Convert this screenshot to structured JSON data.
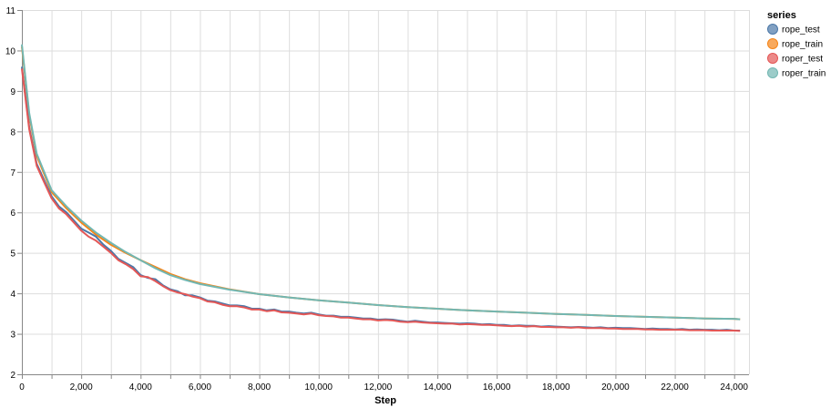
{
  "chart_data": {
    "type": "line",
    "xlabel": "Step",
    "ylabel": "",
    "xlim": [
      0,
      24500
    ],
    "ylim": [
      2,
      11
    ],
    "x_ticks": [
      0,
      2000,
      4000,
      6000,
      8000,
      10000,
      12000,
      14000,
      16000,
      18000,
      20000,
      22000,
      24000
    ],
    "x_tick_labels": [
      "0",
      "2,000",
      "4,000",
      "6,000",
      "8,000",
      "10,000",
      "12,000",
      "14,000",
      "16,000",
      "18,000",
      "20,000",
      "22,000",
      "24,000"
    ],
    "y_ticks": [
      2,
      3,
      4,
      5,
      6,
      7,
      8,
      9,
      10,
      11
    ],
    "y_tick_labels": [
      "2",
      "3",
      "4",
      "5",
      "6",
      "7",
      "8",
      "9",
      "10",
      "11"
    ],
    "grid": true,
    "legend": {
      "title": "series",
      "placement": "top-right",
      "items": [
        "rope_test",
        "rope_train",
        "roper_test",
        "roper_train"
      ]
    },
    "series": [
      {
        "name": "rope_test",
        "color": "#4c78a8",
        "x": [
          0,
          250,
          500,
          750,
          1000,
          1250,
          1500,
          1750,
          2000,
          2250,
          2500,
          2750,
          3000,
          3250,
          3500,
          3750,
          4000,
          4250,
          4500,
          4750,
          5000,
          5250,
          5500,
          5750,
          6000,
          6250,
          6500,
          6750,
          7000,
          7250,
          7500,
          7750,
          8000,
          8250,
          8500,
          8750,
          9000,
          9250,
          9500,
          9750,
          10000,
          10250,
          10500,
          10750,
          11000,
          11250,
          11500,
          11750,
          12000,
          12250,
          12500,
          12750,
          13000,
          13250,
          13500,
          13750,
          14000,
          14250,
          14500,
          14750,
          15000,
          15250,
          15500,
          15750,
          16000,
          16250,
          16500,
          16750,
          17000,
          17250,
          17500,
          17750,
          18000,
          18250,
          18500,
          18750,
          19000,
          19250,
          19500,
          19750,
          20000,
          20250,
          20500,
          20750,
          21000,
          21250,
          21500,
          21750,
          22000,
          22250,
          22500,
          22750,
          23000,
          23250,
          23500,
          23750,
          24000,
          24200
        ],
        "y": [
          9.6,
          8.1,
          7.2,
          6.8,
          6.4,
          6.15,
          6.0,
          5.8,
          5.6,
          5.5,
          5.4,
          5.2,
          5.05,
          4.85,
          4.75,
          4.65,
          4.45,
          4.38,
          4.35,
          4.2,
          4.1,
          4.05,
          3.95,
          3.95,
          3.9,
          3.82,
          3.8,
          3.75,
          3.7,
          3.7,
          3.68,
          3.62,
          3.62,
          3.58,
          3.6,
          3.55,
          3.55,
          3.52,
          3.5,
          3.52,
          3.48,
          3.45,
          3.45,
          3.42,
          3.42,
          3.4,
          3.38,
          3.38,
          3.35,
          3.36,
          3.35,
          3.32,
          3.3,
          3.32,
          3.3,
          3.28,
          3.28,
          3.27,
          3.26,
          3.25,
          3.26,
          3.25,
          3.23,
          3.24,
          3.22,
          3.22,
          3.2,
          3.21,
          3.2,
          3.2,
          3.18,
          3.19,
          3.18,
          3.17,
          3.16,
          3.17,
          3.16,
          3.15,
          3.16,
          3.14,
          3.15,
          3.14,
          3.14,
          3.13,
          3.12,
          3.13,
          3.12,
          3.12,
          3.11,
          3.12,
          3.1,
          3.11,
          3.1,
          3.1,
          3.09,
          3.1,
          3.08,
          3.08
        ]
      },
      {
        "name": "rope_train",
        "color": "#f58518",
        "x": [
          0,
          250,
          500,
          1000,
          1500,
          2000,
          2500,
          3000,
          3500,
          4000,
          4500,
          5000,
          5500,
          6000,
          7000,
          8000,
          9000,
          10000,
          11000,
          12000,
          13000,
          14000,
          15000,
          16000,
          17000,
          18000,
          19000,
          20000,
          21000,
          22000,
          23000,
          24000,
          24200
        ],
        "y": [
          10.1,
          8.4,
          7.4,
          6.5,
          6.1,
          5.75,
          5.45,
          5.2,
          5.0,
          4.82,
          4.65,
          4.48,
          4.35,
          4.25,
          4.1,
          3.98,
          3.9,
          3.83,
          3.77,
          3.71,
          3.66,
          3.62,
          3.58,
          3.55,
          3.52,
          3.49,
          3.47,
          3.44,
          3.42,
          3.4,
          3.38,
          3.37,
          3.36
        ]
      },
      {
        "name": "roper_test",
        "color": "#e45756",
        "x": [
          0,
          250,
          500,
          750,
          1000,
          1250,
          1500,
          1750,
          2000,
          2250,
          2500,
          2750,
          3000,
          3250,
          3500,
          3750,
          4000,
          4250,
          4500,
          4750,
          5000,
          5250,
          5500,
          5750,
          6000,
          6250,
          6500,
          6750,
          7000,
          7250,
          7500,
          7750,
          8000,
          8250,
          8500,
          8750,
          9000,
          9250,
          9500,
          9750,
          10000,
          10250,
          10500,
          10750,
          11000,
          11250,
          11500,
          11750,
          12000,
          12250,
          12500,
          12750,
          13000,
          13250,
          13500,
          13750,
          14000,
          14250,
          14500,
          14750,
          15000,
          15250,
          15500,
          15750,
          16000,
          16250,
          16500,
          16750,
          17000,
          17250,
          17500,
          17750,
          18000,
          18250,
          18500,
          18750,
          19000,
          19250,
          19500,
          19750,
          20000,
          20250,
          20500,
          20750,
          21000,
          21250,
          21500,
          21750,
          22000,
          22250,
          22500,
          22750,
          23000,
          23250,
          23500,
          23750,
          24000,
          24200
        ],
        "y": [
          9.55,
          8.05,
          7.15,
          6.75,
          6.35,
          6.1,
          5.95,
          5.75,
          5.55,
          5.4,
          5.3,
          5.15,
          5.0,
          4.82,
          4.72,
          4.6,
          4.42,
          4.4,
          4.3,
          4.18,
          4.08,
          4.02,
          3.98,
          3.92,
          3.88,
          3.8,
          3.78,
          3.72,
          3.68,
          3.68,
          3.65,
          3.6,
          3.6,
          3.56,
          3.58,
          3.53,
          3.52,
          3.5,
          3.48,
          3.5,
          3.46,
          3.44,
          3.43,
          3.4,
          3.4,
          3.38,
          3.36,
          3.36,
          3.33,
          3.34,
          3.33,
          3.3,
          3.29,
          3.3,
          3.28,
          3.27,
          3.26,
          3.25,
          3.25,
          3.23,
          3.24,
          3.23,
          3.22,
          3.22,
          3.21,
          3.2,
          3.19,
          3.2,
          3.18,
          3.19,
          3.17,
          3.17,
          3.16,
          3.16,
          3.15,
          3.16,
          3.14,
          3.14,
          3.14,
          3.13,
          3.13,
          3.12,
          3.12,
          3.12,
          3.11,
          3.11,
          3.1,
          3.1,
          3.1,
          3.1,
          3.09,
          3.09,
          3.09,
          3.08,
          3.08,
          3.08,
          3.08,
          3.07
        ]
      },
      {
        "name": "roper_train",
        "color": "#72b7b2",
        "x": [
          0,
          250,
          500,
          1000,
          1500,
          2000,
          2500,
          3000,
          3500,
          4000,
          4500,
          5000,
          5500,
          6000,
          7000,
          8000,
          9000,
          10000,
          11000,
          12000,
          13000,
          14000,
          15000,
          16000,
          17000,
          18000,
          19000,
          20000,
          21000,
          22000,
          23000,
          24000,
          24200
        ],
        "y": [
          10.15,
          8.45,
          7.45,
          6.55,
          6.15,
          5.8,
          5.5,
          5.25,
          5.02,
          4.82,
          4.62,
          4.45,
          4.33,
          4.23,
          4.09,
          3.98,
          3.9,
          3.83,
          3.77,
          3.71,
          3.66,
          3.62,
          3.58,
          3.55,
          3.52,
          3.49,
          3.47,
          3.44,
          3.42,
          3.4,
          3.38,
          3.37,
          3.36
        ]
      }
    ]
  }
}
